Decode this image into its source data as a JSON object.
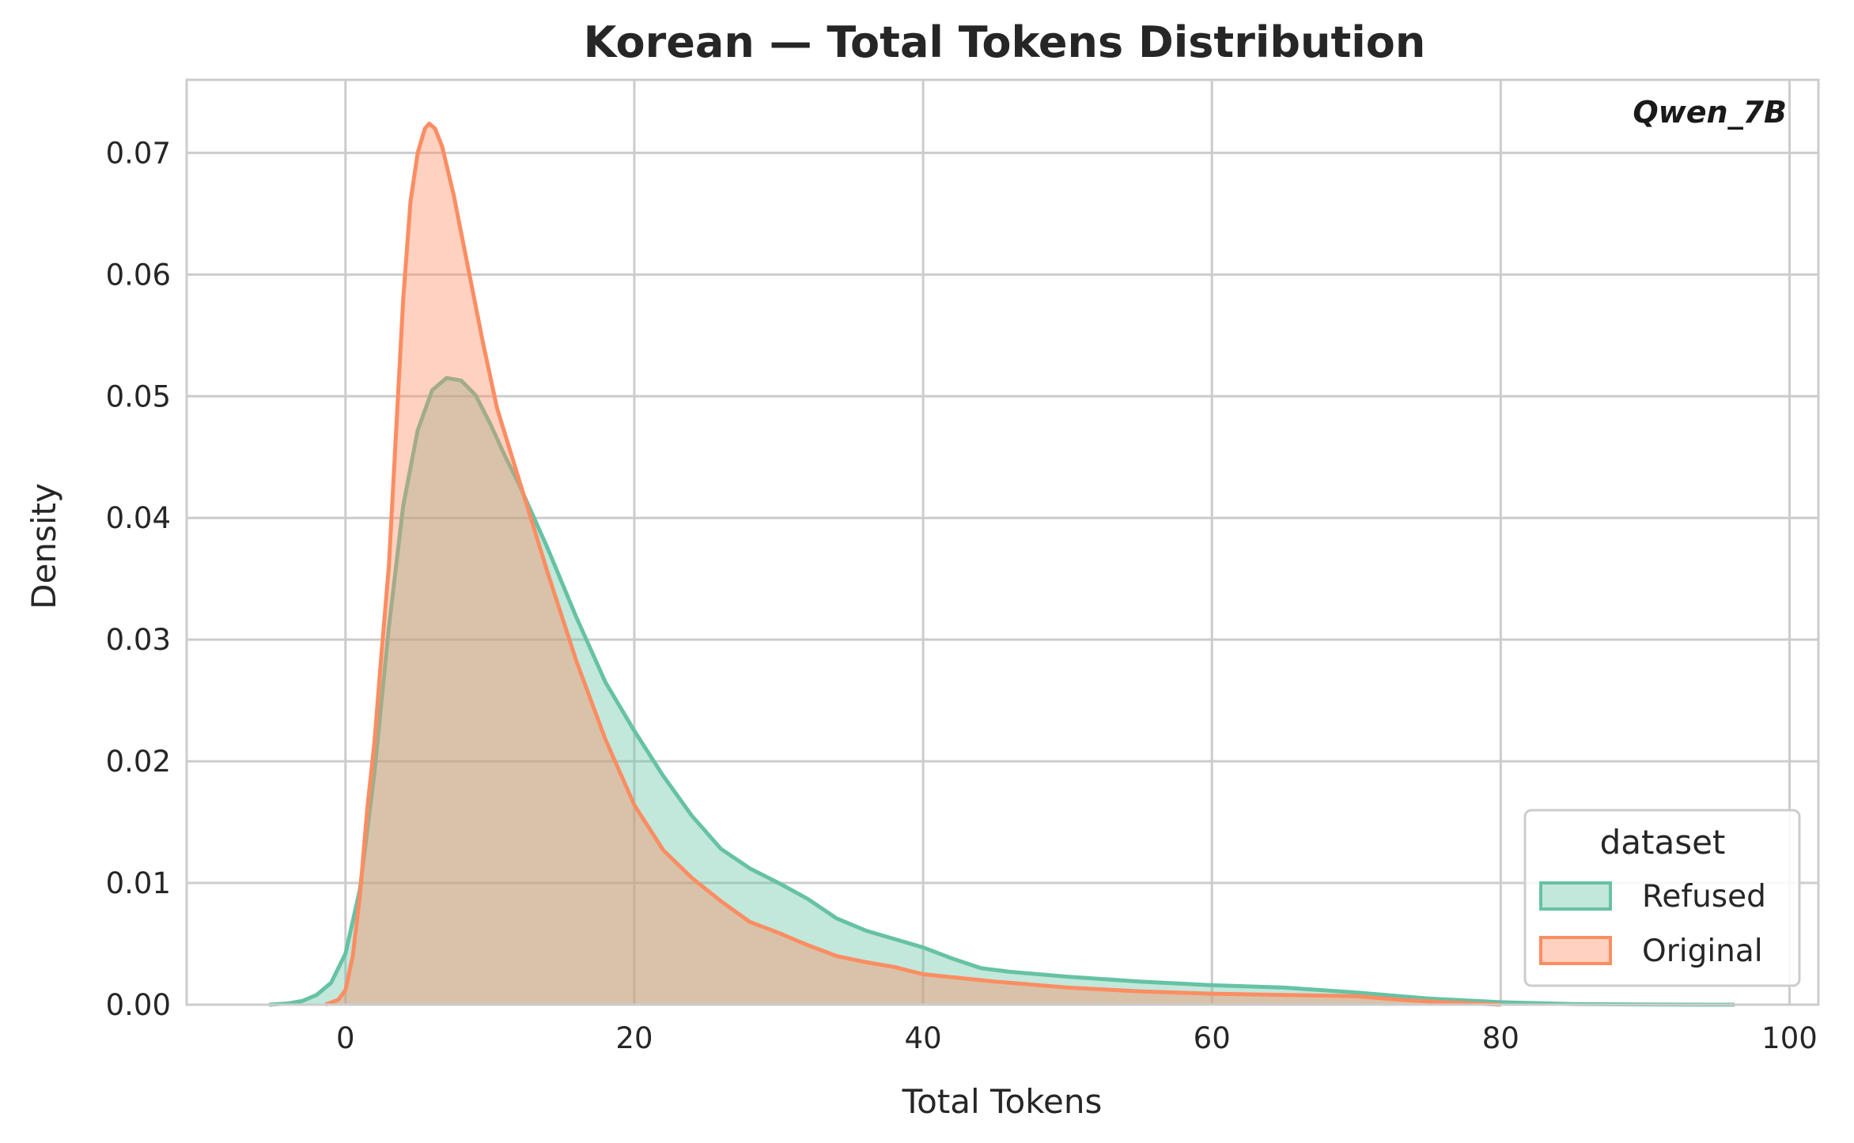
{
  "chart_data": {
    "type": "area",
    "title": "Korean — Total Tokens Distribution",
    "annotation": "Qwen_7B",
    "xlabel": "Total Tokens",
    "ylabel": "Density",
    "xlim": [
      -11,
      102
    ],
    "ylim": [
      0,
      0.076
    ],
    "xticks": [
      0,
      20,
      40,
      60,
      80,
      100
    ],
    "yticks": [
      0.0,
      0.01,
      0.02,
      0.03,
      0.04,
      0.05,
      0.06,
      0.07
    ],
    "xtick_labels": [
      "0",
      "20",
      "40",
      "60",
      "80",
      "100"
    ],
    "ytick_labels": [
      "0.00",
      "0.01",
      "0.02",
      "0.03",
      "0.04",
      "0.05",
      "0.06",
      "0.07"
    ],
    "grid": true,
    "legend": {
      "title": "dataset",
      "placement": "bottom-right"
    },
    "series": [
      {
        "name": "Refused",
        "color": "#66c2a5",
        "points": [
          [
            -5.3,
            0
          ],
          [
            -4,
            0.0001
          ],
          [
            -3,
            0.0003
          ],
          [
            -2,
            0.0008
          ],
          [
            -1,
            0.0018
          ],
          [
            0,
            0.0042
          ],
          [
            1,
            0.0095
          ],
          [
            2,
            0.019
          ],
          [
            3,
            0.031
          ],
          [
            4,
            0.041
          ],
          [
            5,
            0.0472
          ],
          [
            6,
            0.0505
          ],
          [
            7,
            0.0515
          ],
          [
            8,
            0.0513
          ],
          [
            9,
            0.0501
          ],
          [
            10,
            0.0478
          ],
          [
            11,
            0.0452
          ],
          [
            12,
            0.0428
          ],
          [
            14,
            0.0375
          ],
          [
            16,
            0.0318
          ],
          [
            18,
            0.0265
          ],
          [
            20,
            0.0225
          ],
          [
            22,
            0.0188
          ],
          [
            24,
            0.0155
          ],
          [
            26,
            0.0128
          ],
          [
            28,
            0.0112
          ],
          [
            30,
            0.01
          ],
          [
            32,
            0.0087
          ],
          [
            34,
            0.0071
          ],
          [
            36,
            0.0061
          ],
          [
            38,
            0.0054
          ],
          [
            40,
            0.0047
          ],
          [
            42,
            0.0038
          ],
          [
            44,
            0.003
          ],
          [
            46,
            0.0027
          ],
          [
            50,
            0.0023
          ],
          [
            55,
            0.0019
          ],
          [
            60,
            0.0016
          ],
          [
            65,
            0.0014
          ],
          [
            70,
            0.001
          ],
          [
            75,
            0.0005
          ],
          [
            80,
            0.0002
          ],
          [
            85,
            5e-05
          ],
          [
            90,
            1e-05
          ],
          [
            96.2,
            0
          ]
        ]
      },
      {
        "name": "Original",
        "color": "#fc8d62",
        "points": [
          [
            -1.4,
            0
          ],
          [
            -0.5,
            0.0004
          ],
          [
            0,
            0.0012
          ],
          [
            0.5,
            0.004
          ],
          [
            1,
            0.009
          ],
          [
            1.5,
            0.016
          ],
          [
            2,
            0.0215
          ],
          [
            2.5,
            0.029
          ],
          [
            3,
            0.036
          ],
          [
            3.5,
            0.047
          ],
          [
            4,
            0.058
          ],
          [
            4.5,
            0.066
          ],
          [
            5,
            0.07
          ],
          [
            5.5,
            0.072
          ],
          [
            5.8,
            0.0724
          ],
          [
            6.2,
            0.072
          ],
          [
            6.7,
            0.0705
          ],
          [
            7.5,
            0.0665
          ],
          [
            8.5,
            0.0605
          ],
          [
            9.5,
            0.0545
          ],
          [
            10.5,
            0.049
          ],
          [
            12,
            0.0432
          ],
          [
            14,
            0.0355
          ],
          [
            16,
            0.0282
          ],
          [
            18,
            0.0218
          ],
          [
            20,
            0.0164
          ],
          [
            22,
            0.0127
          ],
          [
            24,
            0.0104
          ],
          [
            26,
            0.0085
          ],
          [
            28,
            0.0068
          ],
          [
            30,
            0.0059
          ],
          [
            32,
            0.0049
          ],
          [
            34,
            0.004
          ],
          [
            36,
            0.0035
          ],
          [
            38,
            0.0031
          ],
          [
            40,
            0.0025
          ],
          [
            45,
            0.0019
          ],
          [
            50,
            0.0014
          ],
          [
            55,
            0.0011
          ],
          [
            60,
            0.0009
          ],
          [
            65,
            0.0008
          ],
          [
            70,
            0.0007
          ],
          [
            73,
            0.0004
          ],
          [
            76,
            0.0002
          ],
          [
            80,
            0
          ]
        ]
      }
    ]
  }
}
